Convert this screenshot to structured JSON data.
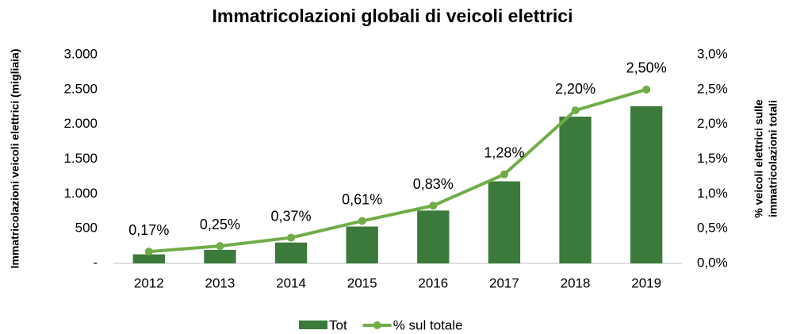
{
  "chart_data": {
    "type": "bar",
    "title": "Immatricolazioni globali di veicoli elettrici",
    "ylabel": "Immatricolazioni veicoli elettrici (migliaia)",
    "y2label": [
      "% veicoli elettrici sulle",
      "immatricolazioni totali"
    ],
    "categories": [
      "2012",
      "2013",
      "2014",
      "2015",
      "2016",
      "2017",
      "2018",
      "2019"
    ],
    "series": [
      {
        "name": "Tot",
        "type": "bar",
        "color": "#3b7a3b",
        "values": [
          130,
          195,
          300,
          530,
          760,
          1180,
          2110,
          2260
        ]
      },
      {
        "name": "% sul totale",
        "type": "line",
        "axis": "y2",
        "color": "#70ad47",
        "values": [
          0.17,
          0.25,
          0.37,
          0.61,
          0.83,
          1.28,
          2.2,
          2.5
        ],
        "value_labels": [
          "0,17%",
          "0,25%",
          "0,37%",
          "0,61%",
          "0,83%",
          "1,28%",
          "2,20%",
          "2,50%"
        ]
      }
    ],
    "ylim": [
      0,
      3000
    ],
    "yticks": [
      {
        "value": 0,
        "label": "-"
      },
      500,
      {
        "value": 1000,
        "label": "1.000"
      },
      {
        "value": 1500,
        "label": "1.500"
      },
      {
        "value": 2000,
        "label": "2.000"
      },
      {
        "value": 2500,
        "label": "2.500"
      },
      {
        "value": 3000,
        "label": "3.000"
      }
    ],
    "y2lim": [
      0,
      3
    ],
    "y2ticks": [
      {
        "value": 0,
        "label": "0,0%"
      },
      {
        "value": 0.5,
        "label": "0,5%"
      },
      {
        "value": 1,
        "label": "1,0%"
      },
      {
        "value": 1.5,
        "label": "1,5%"
      },
      {
        "value": 2,
        "label": "2,0%"
      },
      {
        "value": 2.5,
        "label": "2,5%"
      },
      {
        "value": 3,
        "label": "3,0%"
      }
    ],
    "grid": false,
    "legend": "bottom"
  }
}
